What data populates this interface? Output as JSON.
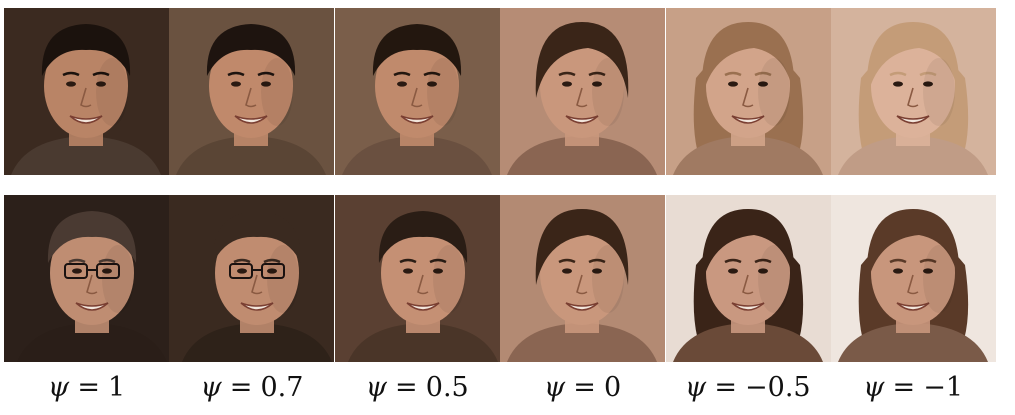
{
  "figure": {
    "rows": [
      {
        "cells": [
          {
            "bg": "#3b2a20",
            "skin": "#b98466",
            "hair": "#1b120d",
            "shirt": "#4a3a30",
            "hair_style": "short",
            "glasses": false
          },
          {
            "bg": "#6a5240",
            "skin": "#c0896b",
            "hair": "#1e140f",
            "shirt": "#5a4535",
            "hair_style": "short",
            "glasses": false
          },
          {
            "bg": "#7a5e4a",
            "skin": "#c08a6c",
            "hair": "#23170f",
            "shirt": "#6a5040",
            "hair_style": "short",
            "glasses": false
          },
          {
            "bg": "#b68c75",
            "skin": "#c9977c",
            "hair": "#3a2518",
            "shirt": "#8a6552",
            "hair_style": "medium",
            "glasses": false
          },
          {
            "bg": "#c7a087",
            "skin": "#d2a48a",
            "hair": "#9a7050",
            "shirt": "#a07a62",
            "hair_style": "long",
            "glasses": false
          },
          {
            "bg": "#d4b39d",
            "skin": "#dcb29a",
            "hair": "#c49c78",
            "shirt": "#c09c86",
            "hair_style": "long",
            "glasses": false
          }
        ]
      },
      {
        "cells": [
          {
            "bg": "#2c201a",
            "skin": "#bf8d72",
            "hair": "#4a3a32",
            "shirt": "#2a1e18",
            "hair_style": "short",
            "glasses": true
          },
          {
            "bg": "#3a2a20",
            "skin": "#c08c70",
            "hair": "#3a2a20",
            "shirt": "#2e2219",
            "hair_style": "short",
            "glasses": true
          },
          {
            "bg": "#5a4032",
            "skin": "#c59074",
            "hair": "#2a1d15",
            "shirt": "#4a3528",
            "hair_style": "short",
            "glasses": false
          },
          {
            "bg": "#b38a73",
            "skin": "#c9977c",
            "hair": "#3a2518",
            "shirt": "#8a6552",
            "hair_style": "medium",
            "glasses": false
          },
          {
            "bg": "#e8dcd3",
            "skin": "#c99880",
            "hair": "#3a2418",
            "shirt": "#6a4a38",
            "hair_style": "long",
            "glasses": false
          },
          {
            "bg": "#efe6df",
            "skin": "#c8967c",
            "hair": "#5a3a28",
            "shirt": "#7a5a48",
            "hair_style": "long",
            "glasses": false
          }
        ]
      }
    ],
    "labels": [
      {
        "symbol": "ψ",
        "eq": "=",
        "value": "1"
      },
      {
        "symbol": "ψ",
        "eq": "=",
        "value": "0.7"
      },
      {
        "symbol": "ψ",
        "eq": "=",
        "value": "0.5"
      },
      {
        "symbol": "ψ",
        "eq": "=",
        "value": "0"
      },
      {
        "symbol": "ψ",
        "eq": "=",
        "value": "−0.5"
      },
      {
        "symbol": "ψ",
        "eq": "=",
        "value": "−1"
      }
    ]
  }
}
